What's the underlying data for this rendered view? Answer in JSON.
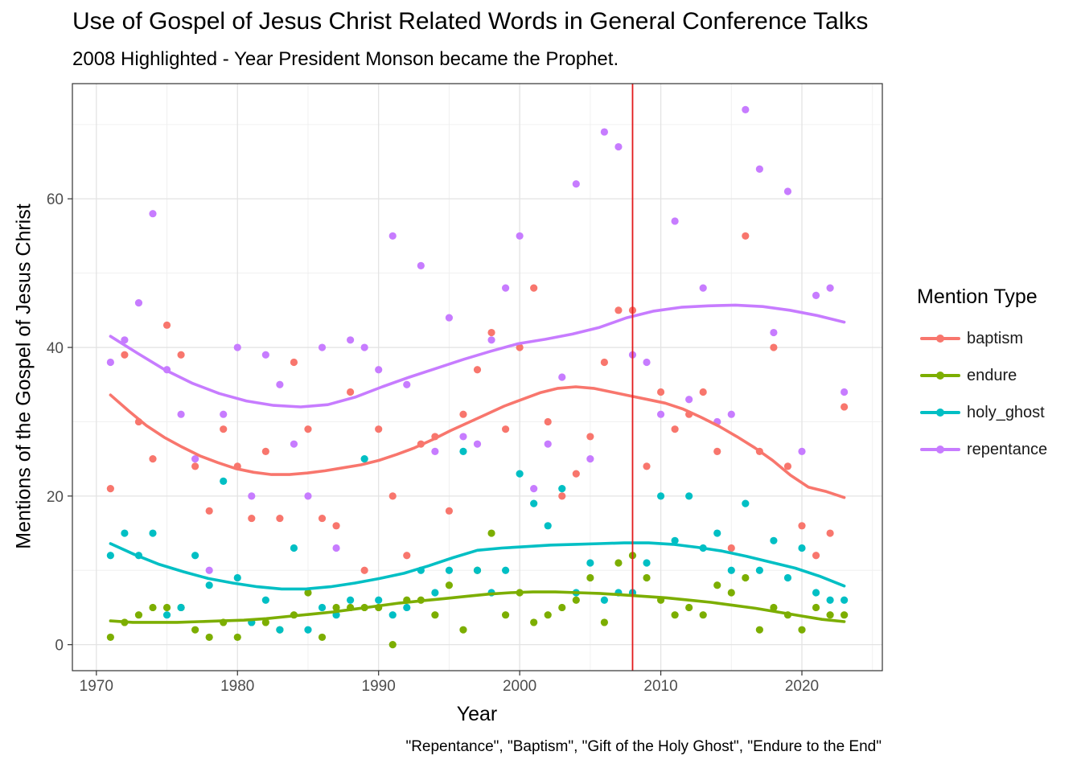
{
  "chart_data": {
    "type": "scatter",
    "title": "Use of Gospel of Jesus Christ Related Words in General Conference Talks",
    "subtitle": "2008 Highlighted - Year President Monson became the Prophet.",
    "xlabel": "Year",
    "ylabel": "Mentions of the Gospel of Jesus Christ",
    "caption": "\"Repentance\", \"Baptism\", \"Gift of the Holy Ghost\", \"Endure to the End\"",
    "legend_title": "Mention Type",
    "legend_position": "right",
    "grid": true,
    "xlim": [
      1968.3,
      1925.7
    ],
    "ylim": [
      -3.5,
      75.5
    ],
    "x_ticks": [
      1970,
      1980,
      1990,
      2000,
      2010,
      2020
    ],
    "y_ticks": [
      0,
      20,
      40,
      60
    ],
    "highlight_x": 2008,
    "highlight_color": "#e31a1c",
    "series": [
      {
        "name": "baptism",
        "color": "#F8766D",
        "x": [
          1971,
          1972,
          1973,
          1974,
          1975,
          1976,
          1977,
          1978,
          1979,
          1980,
          1981,
          1982,
          1983,
          1984,
          1985,
          1986,
          1987,
          1988,
          1989,
          1990,
          1991,
          1992,
          1993,
          1994,
          1995,
          1996,
          1997,
          1998,
          1999,
          2000,
          2001,
          2002,
          2003,
          2004,
          2005,
          2006,
          2007,
          2008,
          2009,
          2010,
          2011,
          2012,
          2013,
          2014,
          2015,
          2016,
          2017,
          2018,
          2019,
          2020,
          2021,
          2022,
          2023
        ],
        "y": [
          21,
          39,
          30,
          25,
          43,
          39,
          24,
          18,
          29,
          24,
          17,
          26,
          17,
          38,
          29,
          17,
          16,
          34,
          10,
          29,
          20,
          12,
          27,
          28,
          18,
          31,
          37,
          42,
          29,
          40,
          48,
          30,
          20,
          23,
          28,
          38,
          45,
          45,
          24,
          34,
          29,
          31,
          34,
          26,
          13,
          55,
          26,
          40,
          24,
          16,
          12,
          15,
          32
        ],
        "smooth_y": [
          33.6,
          31.5,
          29.5,
          27.9,
          26.6,
          25.4,
          24.5,
          23.7,
          23.2,
          22.9,
          22.9,
          23.1,
          23.4,
          23.8,
          24.2,
          24.8,
          25.6,
          26.5,
          27.6,
          28.8,
          29.9,
          31.0,
          32.1,
          33.0,
          33.9,
          34.5,
          34.7,
          34.5,
          34.0,
          33.5,
          33.0,
          32.5,
          31.7,
          30.6,
          29.4,
          28.0,
          26.5,
          24.8,
          22.8,
          21.2,
          20.6,
          19.8
        ]
      },
      {
        "name": "endure",
        "color": "#7CAE00",
        "x": [
          1971,
          1972,
          1973,
          1974,
          1975,
          1976,
          1977,
          1978,
          1979,
          1980,
          1981,
          1982,
          1983,
          1984,
          1985,
          1986,
          1987,
          1988,
          1989,
          1990,
          1991,
          1992,
          1993,
          1994,
          1995,
          1996,
          1997,
          1998,
          1999,
          2000,
          2001,
          2002,
          2003,
          2004,
          2005,
          2006,
          2007,
          2008,
          2009,
          2010,
          2011,
          2012,
          2013,
          2014,
          2015,
          2016,
          2017,
          2018,
          2019,
          2020,
          2021,
          2022,
          2023
        ],
        "y": [
          1,
          3,
          4,
          5,
          5,
          5,
          2,
          1,
          3,
          1,
          3,
          3,
          2,
          4,
          7,
          1,
          5,
          5,
          5,
          5,
          0,
          6,
          6,
          4,
          8,
          2,
          10,
          15,
          4,
          7,
          3,
          4,
          5,
          6,
          9,
          3,
          11,
          12,
          9,
          6,
          4,
          5,
          4,
          8,
          7,
          9,
          2,
          5,
          4,
          2,
          5,
          4,
          4
        ],
        "smooth_y": [
          3.2,
          3.0,
          3.0,
          3.0,
          3.1,
          3.2,
          3.3,
          3.5,
          3.8,
          4.1,
          4.4,
          4.8,
          5.2,
          5.6,
          5.9,
          6.2,
          6.5,
          6.8,
          7.0,
          7.1,
          7.1,
          7.0,
          6.9,
          6.7,
          6.5,
          6.3,
          6.0,
          5.7,
          5.3,
          4.9,
          4.4,
          3.9,
          3.4,
          3.1
        ]
      },
      {
        "name": "holy_ghost",
        "color": "#00BFC4",
        "x": [
          1971,
          1972,
          1973,
          1974,
          1975,
          1976,
          1977,
          1978,
          1979,
          1980,
          1981,
          1982,
          1983,
          1984,
          1985,
          1986,
          1987,
          1988,
          1989,
          1990,
          1991,
          1992,
          1993,
          1994,
          1995,
          1996,
          1997,
          1998,
          1999,
          2000,
          2001,
          2002,
          2003,
          2004,
          2005,
          2006,
          2007,
          2008,
          2009,
          2010,
          2011,
          2012,
          2013,
          2014,
          2015,
          2016,
          2017,
          2018,
          2019,
          2020,
          2021,
          2022,
          2023
        ],
        "y": [
          12,
          15,
          12,
          15,
          4,
          5,
          12,
          8,
          22,
          9,
          3,
          6,
          2,
          13,
          2,
          5,
          4,
          6,
          25,
          6,
          4,
          5,
          10,
          7,
          10,
          26,
          10,
          7,
          10,
          23,
          19,
          16,
          21,
          7,
          11,
          6,
          7,
          7,
          11,
          20,
          14,
          20,
          13,
          15,
          10,
          19,
          10,
          14,
          9,
          13,
          7,
          6,
          6
        ],
        "smooth_y": [
          13.6,
          12.1,
          10.8,
          9.8,
          8.9,
          8.3,
          7.8,
          7.5,
          7.5,
          7.8,
          8.3,
          8.9,
          9.6,
          10.6,
          11.7,
          12.7,
          13.0,
          13.2,
          13.4,
          13.5,
          13.6,
          13.7,
          13.7,
          13.5,
          13.1,
          12.6,
          11.9,
          11.1,
          10.3,
          9.2,
          7.9
        ]
      },
      {
        "name": "repentance",
        "color": "#C77CFF",
        "x": [
          1971,
          1972,
          1973,
          1974,
          1975,
          1976,
          1977,
          1978,
          1979,
          1980,
          1981,
          1982,
          1983,
          1984,
          1985,
          1986,
          1987,
          1988,
          1989,
          1990,
          1991,
          1992,
          1993,
          1994,
          1995,
          1996,
          1997,
          1998,
          1999,
          2000,
          2001,
          2002,
          2003,
          2004,
          2005,
          2006,
          2007,
          2008,
          2009,
          2010,
          2011,
          2012,
          2013,
          2014,
          2015,
          2016,
          2017,
          2018,
          2019,
          2020,
          2021,
          2022,
          2023
        ],
        "y": [
          38,
          41,
          46,
          58,
          37,
          31,
          25,
          10,
          31,
          40,
          20,
          39,
          35,
          27,
          20,
          40,
          13,
          41,
          40,
          37,
          55,
          35,
          51,
          26,
          44,
          28,
          27,
          41,
          48,
          55,
          21,
          27,
          36,
          62,
          25,
          69,
          67,
          39,
          38,
          31,
          57,
          33,
          48,
          30,
          31,
          72,
          64,
          42,
          61,
          26,
          47,
          48,
          34
        ],
        "smooth_y": [
          41.5,
          39.2,
          37.0,
          35.2,
          33.8,
          32.8,
          32.2,
          32.0,
          32.3,
          33.3,
          34.7,
          36.0,
          37.2,
          38.4,
          39.5,
          40.5,
          41.1,
          41.8,
          42.7,
          44.0,
          44.9,
          45.4,
          45.6,
          45.7,
          45.5,
          45.0,
          44.3,
          43.4
        ]
      }
    ]
  }
}
